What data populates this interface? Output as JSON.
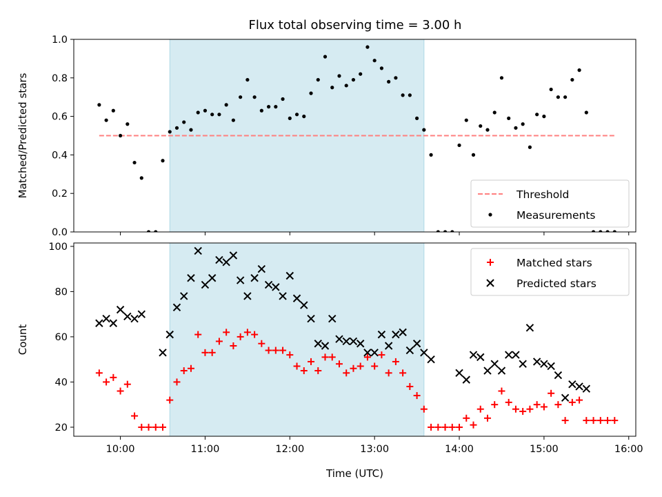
{
  "title": "Flux total observing time = 3.00 h",
  "colors": {
    "highlight": "#add8e6",
    "threshold": "#ff7f7f",
    "measurements": "#000000",
    "matched": "#ff0000",
    "predicted": "#000000"
  },
  "chart_data": [
    {
      "type": "scatter",
      "ylabel": "Matched/Predicted stars",
      "xlim": [
        "09:27",
        "16:05"
      ],
      "ylim": [
        0,
        1.0
      ],
      "yticks": [
        0.0,
        0.2,
        0.4,
        0.6,
        0.8,
        1.0
      ],
      "highlight_span": [
        "10:35",
        "13:35"
      ],
      "threshold": {
        "name": "Threshold",
        "y": 0.5,
        "x": [
          "09:45",
          "15:50"
        ]
      },
      "legend": {
        "position": "bottom-right",
        "entries": [
          "Threshold",
          "Measurements"
        ]
      },
      "series": [
        {
          "name": "Measurements",
          "points": [
            [
              "09:45",
              0.66
            ],
            [
              "09:50",
              0.58
            ],
            [
              "09:55",
              0.63
            ],
            [
              "10:00",
              0.5
            ],
            [
              "10:05",
              0.56
            ],
            [
              "10:10",
              0.36
            ],
            [
              "10:15",
              0.28
            ],
            [
              "10:20",
              0.0
            ],
            [
              "10:25",
              0.0
            ],
            [
              "10:30",
              0.37
            ],
            [
              "10:35",
              0.52
            ],
            [
              "10:40",
              0.54
            ],
            [
              "10:45",
              0.57
            ],
            [
              "10:50",
              0.53
            ],
            [
              "10:55",
              0.62
            ],
            [
              "11:00",
              0.63
            ],
            [
              "11:05",
              0.61
            ],
            [
              "11:10",
              0.61
            ],
            [
              "11:15",
              0.66
            ],
            [
              "11:20",
              0.58
            ],
            [
              "11:25",
              0.7
            ],
            [
              "11:30",
              0.79
            ],
            [
              "11:35",
              0.7
            ],
            [
              "11:40",
              0.63
            ],
            [
              "11:45",
              0.65
            ],
            [
              "11:50",
              0.65
            ],
            [
              "11:55",
              0.69
            ],
            [
              "12:00",
              0.59
            ],
            [
              "12:05",
              0.61
            ],
            [
              "12:10",
              0.6
            ],
            [
              "12:15",
              0.72
            ],
            [
              "12:20",
              0.79
            ],
            [
              "12:25",
              0.91
            ],
            [
              "12:30",
              0.75
            ],
            [
              "12:35",
              0.81
            ],
            [
              "12:40",
              0.76
            ],
            [
              "12:45",
              0.79
            ],
            [
              "12:50",
              0.82
            ],
            [
              "12:55",
              0.96
            ],
            [
              "13:00",
              0.89
            ],
            [
              "13:05",
              0.85
            ],
            [
              "13:10",
              0.78
            ],
            [
              "13:15",
              0.8
            ],
            [
              "13:20",
              0.71
            ],
            [
              "13:25",
              0.71
            ],
            [
              "13:30",
              0.59
            ],
            [
              "13:35",
              0.53
            ],
            [
              "13:40",
              0.4
            ],
            [
              "13:45",
              0.0
            ],
            [
              "13:50",
              0.0
            ],
            [
              "13:55",
              0.0
            ],
            [
              "14:00",
              0.45
            ],
            [
              "14:05",
              0.58
            ],
            [
              "14:10",
              0.4
            ],
            [
              "14:15",
              0.55
            ],
            [
              "14:20",
              0.53
            ],
            [
              "14:25",
              0.62
            ],
            [
              "14:30",
              0.8
            ],
            [
              "14:35",
              0.59
            ],
            [
              "14:40",
              0.54
            ],
            [
              "14:45",
              0.56
            ],
            [
              "14:50",
              0.44
            ],
            [
              "14:55",
              0.61
            ],
            [
              "15:00",
              0.6
            ],
            [
              "15:05",
              0.74
            ],
            [
              "15:10",
              0.7
            ],
            [
              "15:15",
              0.7
            ],
            [
              "15:20",
              0.79
            ],
            [
              "15:25",
              0.84
            ],
            [
              "15:30",
              0.62
            ],
            [
              "15:35",
              0.0
            ],
            [
              "15:40",
              0.0
            ],
            [
              "15:45",
              0.0
            ],
            [
              "15:50",
              0.0
            ]
          ]
        }
      ]
    },
    {
      "type": "scatter",
      "xlabel": "Time (UTC)",
      "ylabel": "Count",
      "xlim": [
        "09:27",
        "16:05"
      ],
      "ylim": [
        16,
        101.5
      ],
      "yticks": [
        20,
        40,
        60,
        80,
        100
      ],
      "xticks": [
        "10:00",
        "11:00",
        "12:00",
        "13:00",
        "14:00",
        "15:00",
        "16:00"
      ],
      "highlight_span": [
        "10:35",
        "13:35"
      ],
      "legend": {
        "position": "top-right",
        "entries": [
          "Matched stars",
          "Predicted stars"
        ]
      },
      "series": [
        {
          "name": "Matched stars",
          "marker": "+",
          "points": [
            [
              "09:45",
              44
            ],
            [
              "09:50",
              40
            ],
            [
              "09:55",
              42
            ],
            [
              "10:00",
              36
            ],
            [
              "10:05",
              39
            ],
            [
              "10:10",
              25
            ],
            [
              "10:15",
              20
            ],
            [
              "10:20",
              20
            ],
            [
              "10:25",
              20
            ],
            [
              "10:30",
              20
            ],
            [
              "10:35",
              32
            ],
            [
              "10:40",
              40
            ],
            [
              "10:45",
              45
            ],
            [
              "10:50",
              46
            ],
            [
              "10:55",
              61
            ],
            [
              "11:00",
              53
            ],
            [
              "11:05",
              53
            ],
            [
              "11:10",
              58
            ],
            [
              "11:15",
              62
            ],
            [
              "11:20",
              56
            ],
            [
              "11:25",
              60
            ],
            [
              "11:30",
              62
            ],
            [
              "11:35",
              61
            ],
            [
              "11:40",
              57
            ],
            [
              "11:45",
              54
            ],
            [
              "11:50",
              54
            ],
            [
              "11:55",
              54
            ],
            [
              "12:00",
              52
            ],
            [
              "12:05",
              47
            ],
            [
              "12:10",
              45
            ],
            [
              "12:15",
              49
            ],
            [
              "12:20",
              45
            ],
            [
              "12:25",
              51
            ],
            [
              "12:30",
              51
            ],
            [
              "12:35",
              48
            ],
            [
              "12:40",
              44
            ],
            [
              "12:45",
              46
            ],
            [
              "12:50",
              47
            ],
            [
              "12:55",
              51
            ],
            [
              "13:00",
              47
            ],
            [
              "13:05",
              52
            ],
            [
              "13:10",
              44
            ],
            [
              "13:15",
              49
            ],
            [
              "13:20",
              44
            ],
            [
              "13:25",
              38
            ],
            [
              "13:30",
              34
            ],
            [
              "13:35",
              28
            ],
            [
              "13:40",
              20
            ],
            [
              "13:45",
              20
            ],
            [
              "13:50",
              20
            ],
            [
              "13:55",
              20
            ],
            [
              "14:00",
              20
            ],
            [
              "14:05",
              24
            ],
            [
              "14:10",
              21
            ],
            [
              "14:15",
              28
            ],
            [
              "14:20",
              24
            ],
            [
              "14:25",
              30
            ],
            [
              "14:30",
              36
            ],
            [
              "14:35",
              31
            ],
            [
              "14:40",
              28
            ],
            [
              "14:45",
              27
            ],
            [
              "14:50",
              28
            ],
            [
              "14:55",
              30
            ],
            [
              "15:00",
              29
            ],
            [
              "15:05",
              35
            ],
            [
              "15:10",
              30
            ],
            [
              "15:15",
              23
            ],
            [
              "15:20",
              31
            ],
            [
              "15:25",
              32
            ],
            [
              "15:30",
              23
            ],
            [
              "15:35",
              23
            ],
            [
              "15:40",
              23
            ],
            [
              "15:45",
              23
            ],
            [
              "15:50",
              23
            ]
          ]
        },
        {
          "name": "Predicted stars",
          "marker": "x",
          "points": [
            [
              "09:45",
              66
            ],
            [
              "09:50",
              68
            ],
            [
              "09:55",
              66
            ],
            [
              "10:00",
              72
            ],
            [
              "10:05",
              69
            ],
            [
              "10:10",
              68
            ],
            [
              "10:15",
              70
            ],
            [
              "10:30",
              53
            ],
            [
              "10:35",
              61
            ],
            [
              "10:40",
              73
            ],
            [
              "10:45",
              78
            ],
            [
              "10:50",
              86
            ],
            [
              "10:55",
              98
            ],
            [
              "11:00",
              83
            ],
            [
              "11:05",
              86
            ],
            [
              "11:10",
              94
            ],
            [
              "11:15",
              93
            ],
            [
              "11:20",
              96
            ],
            [
              "11:25",
              85
            ],
            [
              "11:30",
              78
            ],
            [
              "11:35",
              86
            ],
            [
              "11:40",
              90
            ],
            [
              "11:45",
              83
            ],
            [
              "11:50",
              82
            ],
            [
              "11:55",
              78
            ],
            [
              "12:00",
              87
            ],
            [
              "12:05",
              77
            ],
            [
              "12:10",
              74
            ],
            [
              "12:15",
              68
            ],
            [
              "12:20",
              57
            ],
            [
              "12:25",
              56
            ],
            [
              "12:30",
              68
            ],
            [
              "12:35",
              59
            ],
            [
              "12:40",
              58
            ],
            [
              "12:45",
              58
            ],
            [
              "12:50",
              57
            ],
            [
              "12:55",
              53
            ],
            [
              "13:00",
              53
            ],
            [
              "13:05",
              61
            ],
            [
              "13:10",
              56
            ],
            [
              "13:15",
              61
            ],
            [
              "13:20",
              62
            ],
            [
              "13:25",
              54
            ],
            [
              "13:30",
              57
            ],
            [
              "13:35",
              53
            ],
            [
              "13:40",
              50
            ],
            [
              "14:00",
              44
            ],
            [
              "14:05",
              41
            ],
            [
              "14:10",
              52
            ],
            [
              "14:15",
              51
            ],
            [
              "14:20",
              45
            ],
            [
              "14:25",
              48
            ],
            [
              "14:30",
              45
            ],
            [
              "14:35",
              52
            ],
            [
              "14:40",
              52
            ],
            [
              "14:45",
              48
            ],
            [
              "14:50",
              64
            ],
            [
              "14:55",
              49
            ],
            [
              "15:00",
              48
            ],
            [
              "15:05",
              47
            ],
            [
              "15:10",
              43
            ],
            [
              "15:15",
              33
            ],
            [
              "15:20",
              39
            ],
            [
              "15:25",
              38
            ],
            [
              "15:30",
              37
            ]
          ]
        }
      ]
    }
  ]
}
